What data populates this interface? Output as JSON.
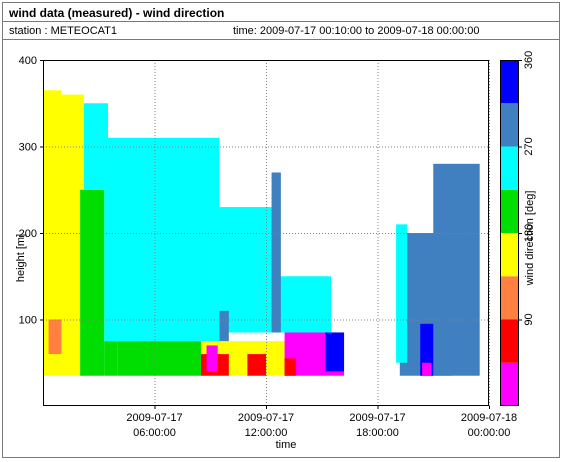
{
  "header": {
    "title": "wind data (measured) - wind direction",
    "station": "station : METEOCAT1",
    "time_range": "time: 2009-07-17 00:10:00 to 2009-07-18 00:00:00"
  },
  "chart_data": {
    "type": "heatmap",
    "xlabel": "time",
    "ylabel": "height [m]",
    "colorbar_label": "wind direction [deg]",
    "x_ticks": [
      {
        "hours": 6,
        "line1": "2009-07-17",
        "line2": "06:00:00"
      },
      {
        "hours": 12,
        "line1": "2009-07-17",
        "line2": "12:00:00"
      },
      {
        "hours": 18,
        "line1": "2009-07-17",
        "line2": "18:00:00"
      },
      {
        "hours": 24,
        "line1": "2009-07-18",
        "line2": "00:00:00"
      }
    ],
    "y_ticks": [
      100,
      200,
      300,
      400
    ],
    "ylim": [
      0,
      400
    ],
    "xlim_hours": [
      0,
      24
    ],
    "grid": true,
    "colorbar_ticks": [
      90,
      180,
      270,
      360
    ],
    "colorbar_range": [
      0,
      360
    ],
    "color_classes": [
      {
        "from": 0,
        "to": 45,
        "color": "#ff00ff"
      },
      {
        "from": 45,
        "to": 90,
        "color": "#ff0000"
      },
      {
        "from": 90,
        "to": 135,
        "color": "#ff8040"
      },
      {
        "from": 135,
        "to": 180,
        "color": "#ffff00"
      },
      {
        "from": 180,
        "to": 225,
        "color": "#00dd00"
      },
      {
        "from": 225,
        "to": 270,
        "color": "#00ffff"
      },
      {
        "from": 270,
        "to": 315,
        "color": "#4080c0"
      },
      {
        "from": 315,
        "to": 360,
        "color": "#0000ff"
      }
    ],
    "regions": [
      {
        "t0": 0.0,
        "t1": 1.0,
        "h0": 35,
        "h1": 365,
        "dir": 160
      },
      {
        "t0": 0.3,
        "t1": 1.0,
        "h0": 60,
        "h1": 100,
        "dir": 110
      },
      {
        "t0": 1.0,
        "t1": 2.2,
        "h0": 35,
        "h1": 360,
        "dir": 160
      },
      {
        "t0": 2.0,
        "t1": 3.3,
        "h0": 35,
        "h1": 250,
        "dir": 200
      },
      {
        "t0": 3.3,
        "t1": 4.0,
        "h0": 35,
        "h1": 75,
        "dir": 200
      },
      {
        "t0": 2.2,
        "t1": 3.5,
        "h0": 250,
        "h1": 350,
        "dir": 250
      },
      {
        "t0": 3.3,
        "t1": 9.5,
        "h0": 75,
        "h1": 310,
        "dir": 245
      },
      {
        "t0": 4.0,
        "t1": 8.5,
        "h0": 35,
        "h1": 75,
        "dir": 200
      },
      {
        "t0": 9.5,
        "t1": 12.5,
        "h0": 85,
        "h1": 230,
        "dir": 245
      },
      {
        "t0": 12.5,
        "t1": 15.5,
        "h0": 85,
        "h1": 150,
        "dir": 245
      },
      {
        "t0": 8.5,
        "t1": 13.0,
        "h0": 35,
        "h1": 75,
        "dir": 160
      },
      {
        "t0": 8.5,
        "t1": 10.0,
        "h0": 35,
        "h1": 60,
        "dir": 60
      },
      {
        "t0": 8.8,
        "t1": 9.4,
        "h0": 40,
        "h1": 70,
        "dir": 20
      },
      {
        "t0": 9.5,
        "t1": 10.0,
        "h0": 75,
        "h1": 110,
        "dir": 290
      },
      {
        "t0": 11.0,
        "t1": 12.0,
        "h0": 35,
        "h1": 60,
        "dir": 60
      },
      {
        "t0": 12.3,
        "t1": 12.8,
        "h0": 85,
        "h1": 270,
        "dir": 290
      },
      {
        "t0": 13.0,
        "t1": 16.2,
        "h0": 35,
        "h1": 85,
        "dir": 20
      },
      {
        "t0": 13.0,
        "t1": 13.6,
        "h0": 35,
        "h1": 55,
        "dir": 60
      },
      {
        "t0": 15.2,
        "t1": 16.2,
        "h0": 40,
        "h1": 85,
        "dir": 330
      },
      {
        "t0": 19.2,
        "t1": 22.0,
        "h0": 35,
        "h1": 200,
        "dir": 290
      },
      {
        "t0": 21.0,
        "t1": 23.5,
        "h0": 35,
        "h1": 280,
        "dir": 290
      },
      {
        "t0": 20.3,
        "t1": 21.0,
        "h0": 35,
        "h1": 95,
        "dir": 330
      },
      {
        "t0": 20.4,
        "t1": 20.9,
        "h0": 35,
        "h1": 50,
        "dir": 20
      },
      {
        "t0": 19.0,
        "t1": 19.6,
        "h0": 50,
        "h1": 210,
        "dir": 245
      }
    ]
  }
}
